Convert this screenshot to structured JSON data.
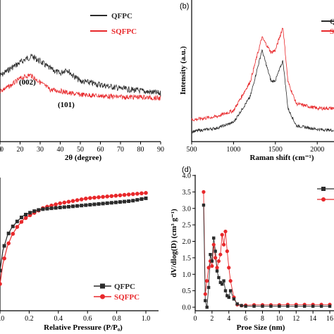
{
  "colors": {
    "qfpc": "#2b2b2b",
    "sqfpc": "#e8282b",
    "axis": "#000000"
  },
  "chart_data": [
    {
      "panel": "a",
      "panel_label": "",
      "type": "line",
      "xlabel": "2θ (degree)",
      "ylabel": "",
      "xlim": [
        10,
        90
      ],
      "xticks": [
        "0",
        "10",
        "20",
        "30",
        "40",
        "50",
        "60",
        "70",
        "80",
        "90"
      ],
      "legend": "top-right",
      "annotations": [
        {
          "text": "(002)",
          "x": 24
        },
        {
          "text": "(101)",
          "x": 44
        }
      ],
      "series": [
        {
          "name": "QFPC",
          "x": [
            10,
            15,
            20,
            23,
            26,
            30,
            35,
            40,
            43,
            46,
            50,
            60,
            70,
            80,
            90
          ],
          "y": [
            0.56,
            0.5,
            0.45,
            0.42,
            0.4,
            0.44,
            0.5,
            0.54,
            0.5,
            0.55,
            0.6,
            0.63,
            0.66,
            0.68,
            0.7
          ]
        },
        {
          "name": "SQFPC",
          "x": [
            10,
            15,
            20,
            25,
            30,
            35,
            40,
            45,
            50,
            60,
            70,
            80,
            90
          ],
          "y": [
            0.68,
            0.64,
            0.58,
            0.55,
            0.61,
            0.67,
            0.68,
            0.7,
            0.71,
            0.72,
            0.73,
            0.73,
            0.74
          ]
        }
      ]
    },
    {
      "panel": "b",
      "panel_label": "(b)",
      "type": "line",
      "xlabel": "Raman shift (cm⁻¹)",
      "ylabel": "Intensity (a.u.)",
      "xlim": [
        500,
        2200
      ],
      "xticks": [
        "500",
        "1000",
        "1500",
        "2000"
      ],
      "legend_visible_fragments": [
        "Q",
        "S"
      ],
      "series": [
        {
          "name": "QFPC",
          "x": [
            500,
            800,
            1000,
            1200,
            1340,
            1450,
            1500,
            1590,
            1650,
            1750,
            2000,
            2200
          ],
          "y": [
            0.02,
            0.05,
            0.1,
            0.32,
            0.72,
            0.45,
            0.46,
            0.63,
            0.22,
            0.07,
            0.04,
            0.03
          ]
        },
        {
          "name": "SQFPC",
          "x": [
            500,
            800,
            1000,
            1200,
            1340,
            1450,
            1500,
            1590,
            1650,
            1750,
            2000,
            2200
          ],
          "y": [
            0.12,
            0.15,
            0.2,
            0.45,
            0.83,
            0.7,
            0.72,
            0.92,
            0.45,
            0.26,
            0.22,
            0.22
          ]
        }
      ]
    },
    {
      "panel": "c",
      "panel_label": "",
      "type": "line",
      "xlabel": "Relative Pressure (P/P₀)",
      "ylabel": "",
      "xlim": [
        0.0,
        1.0
      ],
      "xticks": [
        "0.0",
        "0.2",
        "0.4",
        "0.6",
        "0.8",
        "1.0"
      ],
      "legend": "bottom-right",
      "series": [
        {
          "name": "QFPC",
          "x": [
            0.0,
            0.02,
            0.05,
            0.08,
            0.12,
            0.16,
            0.2,
            0.25,
            0.3,
            0.4,
            0.5,
            0.6,
            0.7,
            0.8,
            0.9,
            1.0
          ],
          "y": [
            0.3,
            0.45,
            0.56,
            0.62,
            0.67,
            0.71,
            0.73,
            0.75,
            0.76,
            0.77,
            0.78,
            0.79,
            0.8,
            0.81,
            0.82,
            0.84
          ]
        },
        {
          "name": "SQFPC",
          "x": [
            0.0,
            0.02,
            0.05,
            0.08,
            0.12,
            0.16,
            0.2,
            0.25,
            0.3,
            0.4,
            0.5,
            0.6,
            0.7,
            0.8,
            0.9,
            1.0
          ],
          "y": [
            0.2,
            0.35,
            0.48,
            0.56,
            0.63,
            0.68,
            0.71,
            0.74,
            0.77,
            0.8,
            0.82,
            0.84,
            0.85,
            0.86,
            0.87,
            0.88
          ]
        }
      ]
    },
    {
      "panel": "d",
      "panel_label": "(d)",
      "type": "line",
      "xlabel": "Proe Size (nm)",
      "ylabel": "dV/dlog(D) (cm³ g⁻¹)",
      "xlim": [
        0,
        16.5
      ],
      "ylim": [
        0,
        4.0
      ],
      "xticks": [
        "0",
        "2",
        "4",
        "6",
        "8",
        "10",
        "12",
        "14",
        "16"
      ],
      "yticks": [
        "0.0",
        "0.5",
        "1.0",
        "1.5",
        "2.0",
        "2.5",
        "3.0",
        "3.5",
        "4.0"
      ],
      "series": [
        {
          "name": "QFPC",
          "x": [
            1.0,
            1.2,
            1.4,
            1.6,
            1.8,
            2.0,
            2.2,
            2.4,
            2.6,
            2.8,
            3.0,
            3.2,
            3.4,
            3.6,
            3.8,
            4.0,
            4.2,
            4.6,
            5.0,
            5.5,
            6.0,
            7,
            8,
            9,
            10,
            11,
            12,
            13,
            14,
            15,
            16
          ],
          "y": [
            3.1,
            0.2,
            0.0,
            0.6,
            1.6,
            1.4,
            2.1,
            1.7,
            1.1,
            0.9,
            0.75,
            0.7,
            0.8,
            0.5,
            0.35,
            0.3,
            0.5,
            0.25,
            0.1,
            0.05,
            0.03,
            0.03,
            0.03,
            0.03,
            0.03,
            0.03,
            0.03,
            0.03,
            0.03,
            0.03,
            0.03
          ]
        },
        {
          "name": "SQFPC",
          "x": [
            1.0,
            1.2,
            1.4,
            1.6,
            1.8,
            2.0,
            2.2,
            2.4,
            2.6,
            2.8,
            3.0,
            3.2,
            3.4,
            3.6,
            3.8,
            4.0,
            4.2,
            4.6,
            5.0,
            5.5,
            6.0,
            7,
            8,
            9,
            10,
            11,
            12,
            13,
            14,
            15,
            16
          ],
          "y": [
            3.5,
            0.4,
            0.8,
            1.2,
            1.4,
            1.25,
            1.9,
            1.5,
            1.2,
            1.4,
            1.6,
            2.2,
            1.9,
            2.3,
            1.7,
            1.2,
            0.8,
            0.3,
            0.08,
            0.05,
            0.06,
            0.07,
            0.07,
            0.07,
            0.07,
            0.08,
            0.08,
            0.08,
            0.08,
            0.08,
            0.08
          ]
        }
      ]
    }
  ]
}
